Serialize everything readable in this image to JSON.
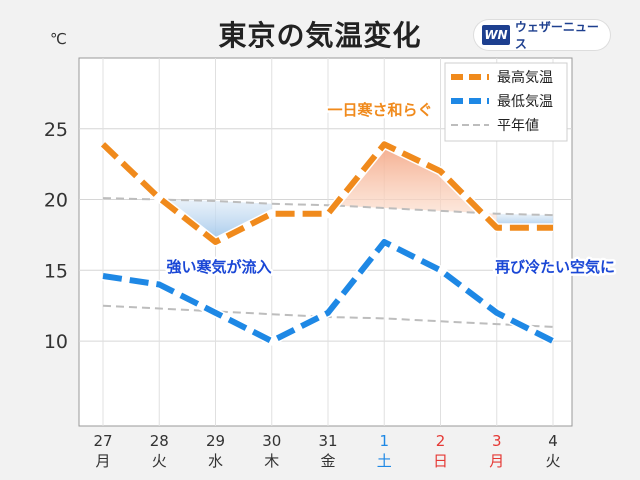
{
  "header": {
    "title": "東京の気温変化",
    "logo_mark": "WN",
    "logo_text": "ウェザーニュース"
  },
  "chart_data": {
    "type": "line",
    "title": "東京の気温変化",
    "unit_label": "℃",
    "ylim": [
      4,
      30
    ],
    "yticks": [
      10,
      15,
      20,
      25
    ],
    "grid": true,
    "legend_position": "top-right",
    "categories": [
      {
        "day": "27",
        "weekday": "月",
        "color": "#333333"
      },
      {
        "day": "28",
        "weekday": "火",
        "color": "#333333"
      },
      {
        "day": "29",
        "weekday": "水",
        "color": "#333333"
      },
      {
        "day": "30",
        "weekday": "木",
        "color": "#333333"
      },
      {
        "day": "31",
        "weekday": "金",
        "color": "#333333"
      },
      {
        "day": "1",
        "weekday": "土",
        "color": "#1e88e5"
      },
      {
        "day": "2",
        "weekday": "日",
        "color": "#e53935"
      },
      {
        "day": "3",
        "weekday": "月",
        "color": "#e53935"
      },
      {
        "day": "4",
        "weekday": "火",
        "color": "#333333"
      }
    ],
    "series": [
      {
        "name": "最高気温",
        "color": "#f08a1c",
        "style": "dashed",
        "values": [
          23.9,
          20.1,
          17.0,
          19.0,
          19.0,
          23.9,
          22.0,
          18.0,
          18.0
        ]
      },
      {
        "name": "最低気温",
        "color": "#1e88e5",
        "style": "dashed",
        "values": [
          14.6,
          14.0,
          12.0,
          10.0,
          12.0,
          17.0,
          15.0,
          12.0,
          10.0
        ]
      },
      {
        "name": "平年値",
        "color": "#bbbbbb",
        "style": "dashed-thin",
        "values_high": [
          20.1,
          20.0,
          19.9,
          19.7,
          19.6,
          19.4,
          19.2,
          19.0,
          18.9
        ],
        "values_low": [
          12.5,
          12.3,
          12.1,
          11.9,
          11.7,
          11.6,
          11.4,
          11.2,
          11.0
        ]
      }
    ],
    "annotations": [
      {
        "text": "一日寒さ和らぐ",
        "color": "#f08a1c"
      },
      {
        "text": "強い寒気が流入",
        "color": "#1a47d6"
      },
      {
        "text": "再び冷たい空気に",
        "color": "#1a47d6"
      }
    ]
  }
}
